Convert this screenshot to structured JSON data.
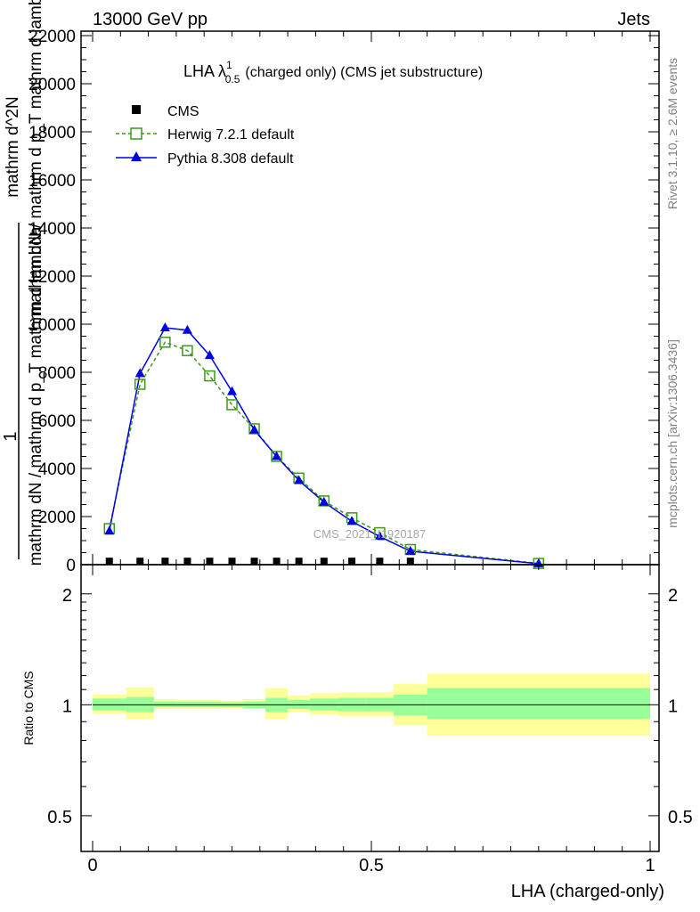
{
  "header": {
    "left": "13000 GeV pp",
    "right": "Jets"
  },
  "side_labels": {
    "rivet": "Rivet 3.1.10, ≥ 2.6M events",
    "mcplots": "mcplots.cern.ch [arXiv:1306.3436]"
  },
  "watermark": "CMS_2021_I1920187",
  "chart_data": [
    {
      "type": "line",
      "title": {
        "main": "LHA λ",
        "sup": "1",
        "sub": "0.5",
        "rest": "(charged only) (CMS jet substructure)"
      },
      "ylabel_parts": [
        "1",
        "mathrm dN / mathrm d p_T mathrm d lambda",
        "mathrm d^2N",
        "mathrm dN / mathrm d p_T mathrm d lambda"
      ],
      "ylim": [
        0,
        22000
      ],
      "yticks": [
        {
          "v": 0,
          "label": "0"
        },
        {
          "v": 2000,
          "label": "2000"
        },
        {
          "v": 4000,
          "label": "4000"
        },
        {
          "v": 6000,
          "label": "6000"
        },
        {
          "v": 8000,
          "label": "8000"
        },
        {
          "v": 10000,
          "label": "10000"
        },
        {
          "v": 12000,
          "label": "12000"
        },
        {
          "v": 14000,
          "label": "14000"
        },
        {
          "v": 16000,
          "label": "16000"
        },
        {
          "v": 18000,
          "label": "18000"
        },
        {
          "v": 20000,
          "label": "20000"
        },
        {
          "v": 22000,
          "label": "22000"
        }
      ],
      "xlim": [
        0,
        1
      ],
      "legend_position": "top-left",
      "series": [
        {
          "name": "CMS",
          "color": "#000000",
          "marker": "square-filled",
          "x": [
            0.03,
            0.085,
            0.13,
            0.17,
            0.21,
            0.25,
            0.29,
            0.33,
            0.37,
            0.415,
            0.465,
            0.515,
            0.57
          ],
          "y": [
            30,
            30,
            30,
            30,
            30,
            30,
            30,
            30,
            30,
            30,
            30,
            30,
            30
          ]
        },
        {
          "name": "Herwig 7.2.1 default",
          "color": "#3a9a1a",
          "marker": "square-open",
          "dashed": true,
          "x": [
            0.03,
            0.085,
            0.13,
            0.17,
            0.21,
            0.25,
            0.29,
            0.33,
            0.37,
            0.415,
            0.465,
            0.515,
            0.57,
            0.8
          ],
          "y": [
            1500,
            7500,
            9250,
            8900,
            7850,
            6650,
            5650,
            4500,
            3600,
            2650,
            1950,
            1330,
            630,
            50
          ]
        },
        {
          "name": "Pythia 8.308 default",
          "color": "#0000e0",
          "marker": "triangle-filled",
          "dashed": false,
          "x": [
            0.03,
            0.085,
            0.13,
            0.17,
            0.21,
            0.25,
            0.29,
            0.33,
            0.37,
            0.415,
            0.465,
            0.515,
            0.57,
            0.8
          ],
          "y": [
            1400,
            7950,
            9850,
            9750,
            8700,
            7200,
            5600,
            4500,
            3500,
            2600,
            1800,
            1170,
            560,
            40
          ]
        }
      ]
    },
    {
      "type": "area",
      "ylabel": "Ratio to CMS",
      "ylim": [
        0.4,
        2.4
      ],
      "log_y": true,
      "yticks_left": [
        {
          "v": 0.5,
          "label": "0.5"
        },
        {
          "v": 1,
          "label": "1"
        },
        {
          "v": 2,
          "label": "2"
        }
      ],
      "yticks_right": [
        {
          "v": 0.5,
          "label": "0.5"
        },
        {
          "v": 1,
          "label": "1"
        },
        {
          "v": 2,
          "label": "2"
        }
      ],
      "xlabel": "LHA (charged-only)",
      "xticks": [
        {
          "v": 0,
          "label": "0"
        },
        {
          "v": 0.5,
          "label": "0.5"
        },
        {
          "v": 1,
          "label": "1"
        }
      ],
      "xlim": [
        0,
        1
      ],
      "reference": 1,
      "bands": [
        {
          "x0": 0.0,
          "x1": 0.06,
          "inner": [
            0.965,
            1.04
          ],
          "outer": [
            0.945,
            1.065
          ]
        },
        {
          "x0": 0.06,
          "x1": 0.11,
          "inner": [
            0.955,
            1.05
          ],
          "outer": [
            0.915,
            1.115
          ]
        },
        {
          "x0": 0.11,
          "x1": 0.15,
          "inner": [
            0.985,
            1.02
          ],
          "outer": [
            0.975,
            1.035
          ]
        },
        {
          "x0": 0.15,
          "x1": 0.19,
          "inner": [
            0.985,
            1.02
          ],
          "outer": [
            0.975,
            1.03
          ]
        },
        {
          "x0": 0.19,
          "x1": 0.23,
          "inner": [
            0.985,
            1.02
          ],
          "outer": [
            0.975,
            1.03
          ]
        },
        {
          "x0": 0.23,
          "x1": 0.27,
          "inner": [
            0.985,
            1.015
          ],
          "outer": [
            0.98,
            1.025
          ]
        },
        {
          "x0": 0.27,
          "x1": 0.31,
          "inner": [
            0.98,
            1.02
          ],
          "outer": [
            0.975,
            1.035
          ]
        },
        {
          "x0": 0.31,
          "x1": 0.35,
          "inner": [
            0.955,
            1.045
          ],
          "outer": [
            0.915,
            1.11
          ]
        },
        {
          "x0": 0.35,
          "x1": 0.39,
          "inner": [
            0.975,
            1.03
          ],
          "outer": [
            0.955,
            1.06
          ]
        },
        {
          "x0": 0.39,
          "x1": 0.44,
          "inner": [
            0.965,
            1.04
          ],
          "outer": [
            0.94,
            1.075
          ]
        },
        {
          "x0": 0.44,
          "x1": 0.49,
          "inner": [
            0.96,
            1.045
          ],
          "outer": [
            0.93,
            1.08
          ]
        },
        {
          "x0": 0.49,
          "x1": 0.54,
          "inner": [
            0.96,
            1.045
          ],
          "outer": [
            0.93,
            1.08
          ]
        },
        {
          "x0": 0.54,
          "x1": 0.6,
          "inner": [
            0.935,
            1.065
          ],
          "outer": [
            0.88,
            1.14
          ]
        },
        {
          "x0": 0.6,
          "x1": 1.0,
          "inner": [
            0.915,
            1.11
          ],
          "outer": [
            0.825,
            1.215
          ]
        }
      ],
      "colors": {
        "inner": "#99ff99",
        "outer": "#ffff99"
      }
    }
  ]
}
